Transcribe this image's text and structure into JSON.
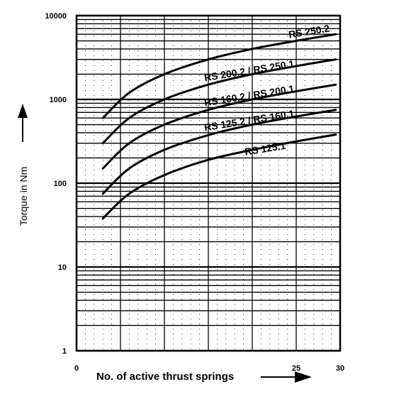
{
  "chart_data": {
    "type": "line",
    "xlabel": "No. of active thrust springs",
    "ylabel": "Torque in Nm",
    "x_scale": "linear",
    "y_scale": "log",
    "xlim": [
      0,
      30
    ],
    "ylim": [
      1,
      10000
    ],
    "x_tick_labels": [
      "0",
      "25",
      "30"
    ],
    "x_ticks": [
      0,
      25,
      30
    ],
    "y_ticks": [
      1,
      10,
      100,
      1000,
      10000
    ],
    "y_tick_labels": [
      "1",
      "10",
      "100",
      "1000",
      "10000"
    ],
    "grid": true,
    "series": [
      {
        "name": "RS 250.2",
        "x": [
          3,
          6,
          10,
          15,
          20,
          25,
          29.5
        ],
        "values": [
          600,
          1200,
          2000,
          3000,
          4000,
          5000,
          6000
        ]
      },
      {
        "name": "RS 200.2 / RS 250.1",
        "x": [
          3,
          6,
          10,
          15,
          20,
          25,
          29.5
        ],
        "values": [
          300,
          600,
          1000,
          1500,
          2000,
          2500,
          3000
        ]
      },
      {
        "name": "RS 160.2 / RS 200.1",
        "x": [
          3,
          6,
          10,
          15,
          20,
          25,
          29.5
        ],
        "values": [
          150,
          300,
          500,
          750,
          1000,
          1250,
          1500
        ]
      },
      {
        "name": "RS 125.2 / RS 160.1",
        "x": [
          3,
          6,
          10,
          15,
          20,
          25,
          29.5
        ],
        "values": [
          75,
          150,
          250,
          375,
          500,
          625,
          750
        ]
      },
      {
        "name": "RS 125.1",
        "x": [
          3,
          6,
          10,
          15,
          20,
          25,
          29.5
        ],
        "values": [
          38,
          75,
          125,
          190,
          250,
          315,
          380
        ]
      }
    ],
    "series_label_text": [
      "RS 250.2",
      "RS 200.2 / RS 250.1",
      "RS 160.2 / RS 200.1",
      "RS 125.2 / RS 160.1",
      "RS 125.1"
    ]
  }
}
